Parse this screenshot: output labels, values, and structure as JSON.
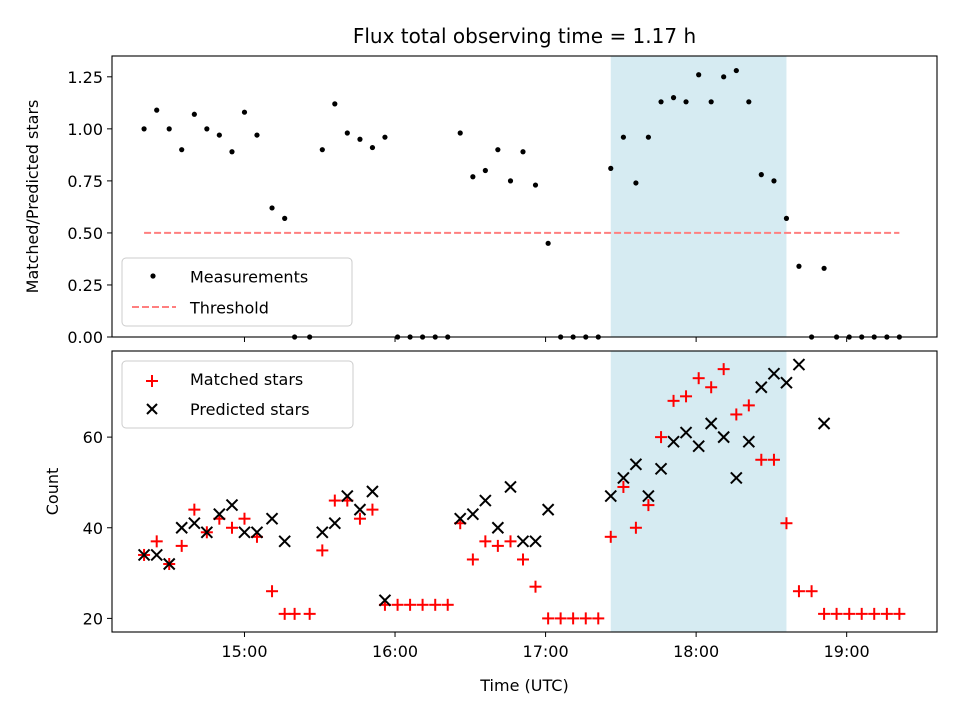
{
  "title": "Flux total observing time = 1.17 h",
  "colors": {
    "measurement": "#000000",
    "threshold": "#ff7f7f",
    "matched": "#ff0000",
    "predicted": "#000000",
    "highlight": "#add8e6"
  },
  "chart_data": [
    {
      "type": "scatter",
      "panel": "top",
      "title": "Flux total observing time = 1.17 h",
      "xlabel": "",
      "ylabel": "Matched/Predicted stars",
      "xlim": [
        14.12,
        19.6
      ],
      "ylim": [
        0,
        1.35
      ],
      "yticks": [
        0,
        0.25,
        0.5,
        0.75,
        1.0,
        1.25
      ],
      "ytick_labels": [
        "0.00",
        "0.25",
        "0.50",
        "0.75",
        "1.00",
        "1.25"
      ],
      "xticks": [
        15,
        16,
        17,
        18,
        19
      ],
      "highlight_span": [
        17.433,
        18.6
      ],
      "legend": {
        "position": "lower-left",
        "entries": [
          "Measurements",
          "Threshold"
        ]
      },
      "threshold": {
        "name": "Threshold",
        "value": 0.5,
        "x_range": [
          14.333,
          19.35
        ]
      },
      "series": [
        {
          "name": "Measurements",
          "x": [
            14.333,
            14.417,
            14.5,
            14.583,
            14.667,
            14.75,
            14.833,
            14.917,
            15.0,
            15.083,
            15.183,
            15.267,
            15.333,
            15.433,
            15.517,
            15.6,
            15.683,
            15.767,
            15.85,
            15.933,
            16.017,
            16.1,
            16.183,
            16.267,
            16.35,
            16.433,
            16.517,
            16.6,
            16.683,
            16.767,
            16.85,
            16.933,
            17.017,
            17.1,
            17.183,
            17.267,
            17.35,
            17.433,
            17.517,
            17.6,
            17.683,
            17.767,
            17.85,
            17.933,
            18.017,
            18.1,
            18.183,
            18.267,
            18.35,
            18.433,
            18.517,
            18.6,
            18.683,
            18.767,
            18.85,
            18.933,
            19.017,
            19.1,
            19.183,
            19.267,
            19.35
          ],
          "y": [
            1.0,
            1.09,
            1.0,
            0.9,
            1.07,
            1.0,
            0.97,
            0.89,
            1.08,
            0.97,
            0.62,
            0.57,
            0.0,
            0.0,
            0.9,
            1.12,
            0.98,
            0.95,
            0.91,
            0.96,
            0.0,
            0.0,
            0.0,
            0.0,
            0.0,
            0.98,
            0.77,
            0.8,
            0.9,
            0.75,
            0.89,
            0.73,
            0.45,
            0.0,
            0.0,
            0.0,
            0.0,
            0.81,
            0.96,
            0.74,
            0.96,
            1.13,
            1.15,
            1.13,
            1.26,
            1.13,
            1.25,
            1.28,
            1.13,
            0.78,
            0.75,
            0.57,
            0.34,
            0.0,
            0.33,
            0.0,
            0.0,
            0.0,
            0.0,
            0.0,
            0.0
          ]
        }
      ]
    },
    {
      "type": "scatter",
      "panel": "bottom",
      "xlabel": "Time (UTC)",
      "ylabel": "Count",
      "xlim": [
        14.12,
        19.6
      ],
      "ylim": [
        17,
        79
      ],
      "yticks": [
        20,
        40,
        60
      ],
      "ytick_labels": [
        "20",
        "40",
        "60"
      ],
      "xticks": [
        15,
        16,
        17,
        18,
        19
      ],
      "xtick_labels": [
        "15:00",
        "16:00",
        "17:00",
        "18:00",
        "19:00"
      ],
      "highlight_span": [
        17.433,
        18.6
      ],
      "legend": {
        "position": "upper-left",
        "entries": [
          "Matched stars",
          "Predicted stars"
        ]
      },
      "series": [
        {
          "name": "Matched stars",
          "marker": "plus",
          "x": [
            14.333,
            14.417,
            14.5,
            14.583,
            14.667,
            14.75,
            14.833,
            14.917,
            15.0,
            15.083,
            15.183,
            15.267,
            15.333,
            15.433,
            15.517,
            15.6,
            15.683,
            15.767,
            15.85,
            15.933,
            16.017,
            16.1,
            16.183,
            16.267,
            16.35,
            16.433,
            16.517,
            16.6,
            16.683,
            16.767,
            16.85,
            16.933,
            17.017,
            17.1,
            17.183,
            17.267,
            17.35,
            17.433,
            17.517,
            17.6,
            17.683,
            17.767,
            17.85,
            17.933,
            18.017,
            18.1,
            18.183,
            18.267,
            18.35,
            18.433,
            18.517,
            18.6,
            18.683,
            18.767,
            18.85,
            18.933,
            19.017,
            19.1,
            19.183,
            19.267,
            19.35
          ],
          "y": [
            34,
            37,
            32,
            36,
            44,
            39,
            42,
            40,
            42,
            38,
            26,
            21,
            21,
            21,
            35,
            46,
            46,
            42,
            44,
            23,
            23,
            23,
            23,
            23,
            23,
            41,
            33,
            37,
            36,
            37,
            33,
            27,
            20,
            20,
            20,
            20,
            20,
            38,
            49,
            40,
            45,
            60,
            68,
            69,
            73,
            71,
            75,
            65,
            67,
            55,
            55,
            41,
            26,
            26,
            21,
            21,
            21,
            21,
            21,
            21,
            21
          ]
        },
        {
          "name": "Predicted stars",
          "marker": "x",
          "x": [
            14.333,
            14.417,
            14.5,
            14.583,
            14.667,
            14.75,
            14.833,
            14.917,
            15.0,
            15.083,
            15.183,
            15.267,
            15.517,
            15.6,
            15.683,
            15.767,
            15.85,
            15.933,
            16.433,
            16.517,
            16.6,
            16.683,
            16.767,
            16.85,
            16.933,
            17.017,
            17.433,
            17.517,
            17.6,
            17.683,
            17.767,
            17.85,
            17.933,
            18.017,
            18.1,
            18.183,
            18.267,
            18.35,
            18.433,
            18.517,
            18.6,
            18.683,
            18.85
          ],
          "y": [
            34,
            34,
            32,
            40,
            41,
            39,
            43,
            45,
            39,
            39,
            42,
            37,
            39,
            41,
            47,
            44,
            48,
            24,
            42,
            43,
            46,
            40,
            49,
            37,
            37,
            44,
            47,
            51,
            54,
            47,
            53,
            59,
            61,
            58,
            63,
            60,
            51,
            59,
            71,
            74,
            72,
            76,
            63
          ]
        }
      ]
    }
  ]
}
